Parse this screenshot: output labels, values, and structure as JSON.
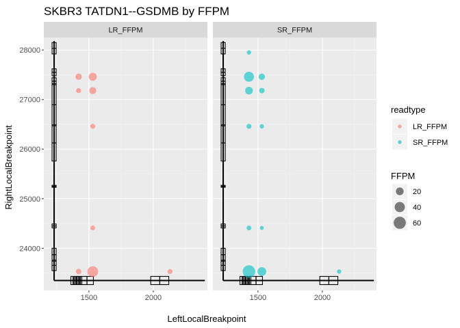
{
  "chart_data": {
    "type": "scatter",
    "title": "SKBR3 TATDN1--GSDMB by FFPM",
    "xlabel": "LeftLocalBreakpoint",
    "ylabel": "RightLocalBreakpoint",
    "xlim": [
      1150,
      2420
    ],
    "ylim": [
      23150,
      28250
    ],
    "x_ticks": [
      1500,
      2000
    ],
    "y_ticks": [
      24000,
      25000,
      26000,
      27000,
      28000
    ],
    "grid": true,
    "facets": [
      {
        "label": "LR_FFPM",
        "readtype": "LR_FFPM",
        "points": [
          {
            "x": 1420,
            "y": 27460,
            "ffpm": 12
          },
          {
            "x": 1530,
            "y": 27460,
            "ffpm": 22
          },
          {
            "x": 1420,
            "y": 27180,
            "ffpm": 6
          },
          {
            "x": 1530,
            "y": 27180,
            "ffpm": 16
          },
          {
            "x": 1530,
            "y": 26460,
            "ffpm": 6
          },
          {
            "x": 1530,
            "y": 24410,
            "ffpm": 5
          },
          {
            "x": 1420,
            "y": 23530,
            "ffpm": 8
          },
          {
            "x": 1530,
            "y": 23530,
            "ffpm": 45
          },
          {
            "x": 2130,
            "y": 23530,
            "ffpm": 6
          }
        ],
        "x_boxes": [
          {
            "lo": 1360,
            "hi": 1395
          },
          {
            "lo": 1385,
            "hi": 1420
          },
          {
            "lo": 1410,
            "hi": 1445
          },
          {
            "lo": 1435,
            "hi": 1535
          },
          {
            "lo": 1980,
            "hi": 2120
          }
        ],
        "y_boxes": [
          {
            "lo": 27920,
            "hi": 28150
          },
          {
            "lo": 27480,
            "hi": 27620
          },
          {
            "lo": 27300,
            "hi": 27440
          },
          {
            "lo": 26470,
            "hi": 27320
          },
          {
            "lo": 25760,
            "hi": 26490
          },
          {
            "lo": 25230,
            "hi": 25270
          },
          {
            "lo": 24410,
            "hi": 24490
          },
          {
            "lo": 23740,
            "hi": 24000
          },
          {
            "lo": 23550,
            "hi": 23760
          }
        ]
      },
      {
        "label": "SR_FFPM",
        "readtype": "SR_FFPM",
        "points": [
          {
            "x": 1430,
            "y": 27950,
            "ffpm": 4
          },
          {
            "x": 1430,
            "y": 27460,
            "ffpm": 38
          },
          {
            "x": 1530,
            "y": 27460,
            "ffpm": 12
          },
          {
            "x": 1430,
            "y": 27180,
            "ffpm": 20
          },
          {
            "x": 1530,
            "y": 27180,
            "ffpm": 8
          },
          {
            "x": 1430,
            "y": 26460,
            "ffpm": 6
          },
          {
            "x": 1530,
            "y": 26460,
            "ffpm": 4
          },
          {
            "x": 1430,
            "y": 24410,
            "ffpm": 5
          },
          {
            "x": 1530,
            "y": 24410,
            "ffpm": 3
          },
          {
            "x": 1430,
            "y": 23530,
            "ffpm": 65
          },
          {
            "x": 1530,
            "y": 23530,
            "ffpm": 28
          },
          {
            "x": 2130,
            "y": 23530,
            "ffpm": 4
          }
        ],
        "x_boxes": [
          {
            "lo": 1360,
            "hi": 1395
          },
          {
            "lo": 1385,
            "hi": 1420
          },
          {
            "lo": 1410,
            "hi": 1445
          },
          {
            "lo": 1435,
            "hi": 1535
          },
          {
            "lo": 1980,
            "hi": 2120
          }
        ],
        "y_boxes": [
          {
            "lo": 27920,
            "hi": 28150
          },
          {
            "lo": 27480,
            "hi": 27620
          },
          {
            "lo": 27300,
            "hi": 27440
          },
          {
            "lo": 26470,
            "hi": 27320
          },
          {
            "lo": 25760,
            "hi": 26490
          },
          {
            "lo": 25230,
            "hi": 25270
          },
          {
            "lo": 24410,
            "hi": 24490
          },
          {
            "lo": 23740,
            "hi": 24000
          },
          {
            "lo": 23550,
            "hi": 23760
          }
        ]
      }
    ],
    "x_whisker": [
      1230,
      2400
    ],
    "y_whisker": [
      23350,
      28180
    ],
    "colors": {
      "LR_FFPM": "#F8766D",
      "SR_FFPM": "#00BFC4"
    },
    "legend": {
      "placement": "right",
      "readtype_title": "readtype",
      "readtype_entries": [
        "LR_FFPM",
        "SR_FFPM"
      ],
      "size_title": "FFPM",
      "size_entries": [
        20,
        40,
        60
      ]
    }
  }
}
